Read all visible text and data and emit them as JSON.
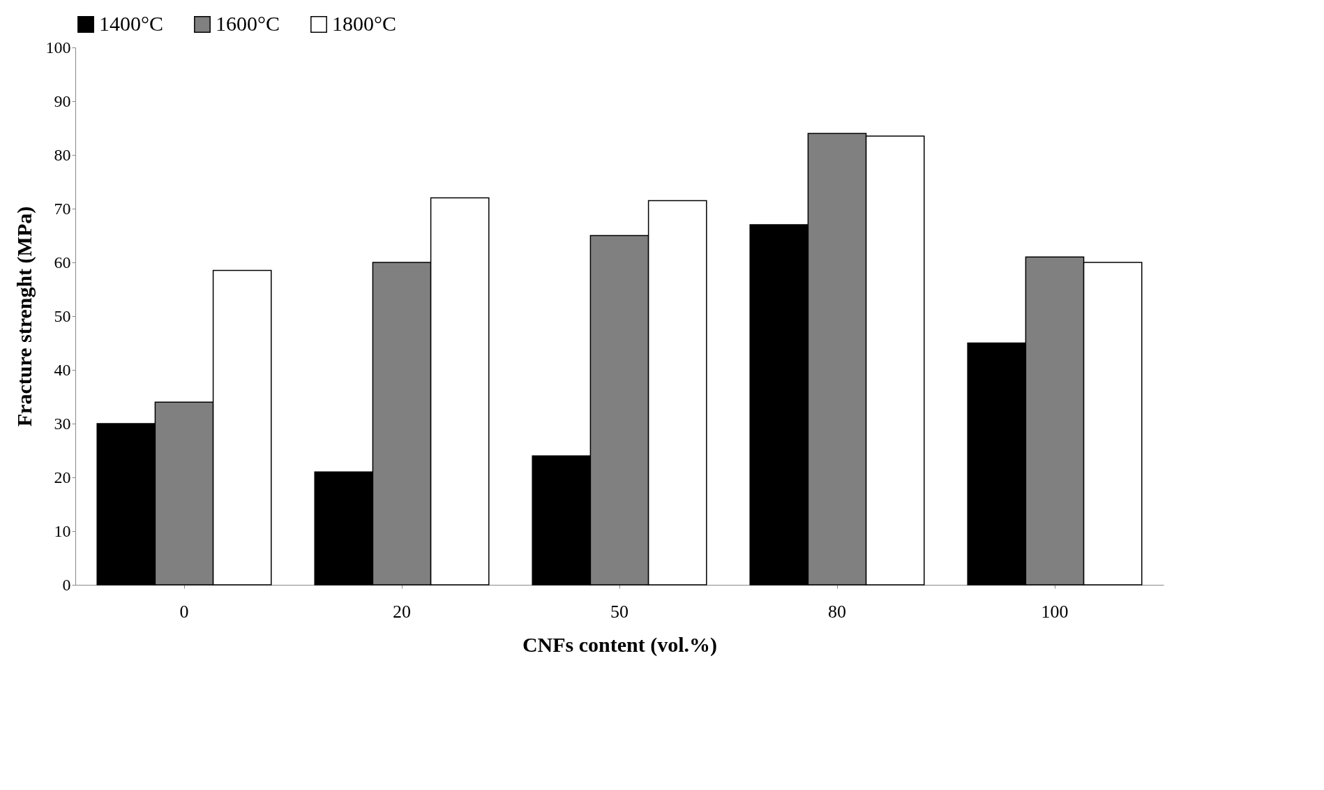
{
  "chart_data": {
    "type": "bar",
    "xlabel": "CNFs content (vol.%)",
    "ylabel": "Fracture strenght  (MPa)",
    "categories": [
      "0",
      "20",
      "50",
      "80",
      "100"
    ],
    "series": [
      {
        "name": "1400°C",
        "color": "#000000",
        "values": [
          30,
          21,
          24,
          67,
          45
        ]
      },
      {
        "name": "1600°C",
        "color": "#808080",
        "values": [
          34,
          60,
          65,
          84,
          61
        ]
      },
      {
        "name": "1800°C",
        "color": "#ffffff",
        "values": [
          58.5,
          72,
          71.5,
          83.5,
          60
        ]
      }
    ],
    "ylim": [
      0,
      100
    ],
    "yticks": [
      0,
      10,
      20,
      30,
      40,
      50,
      60,
      70,
      80,
      90,
      100
    ],
    "grid": false,
    "legend": "top"
  }
}
